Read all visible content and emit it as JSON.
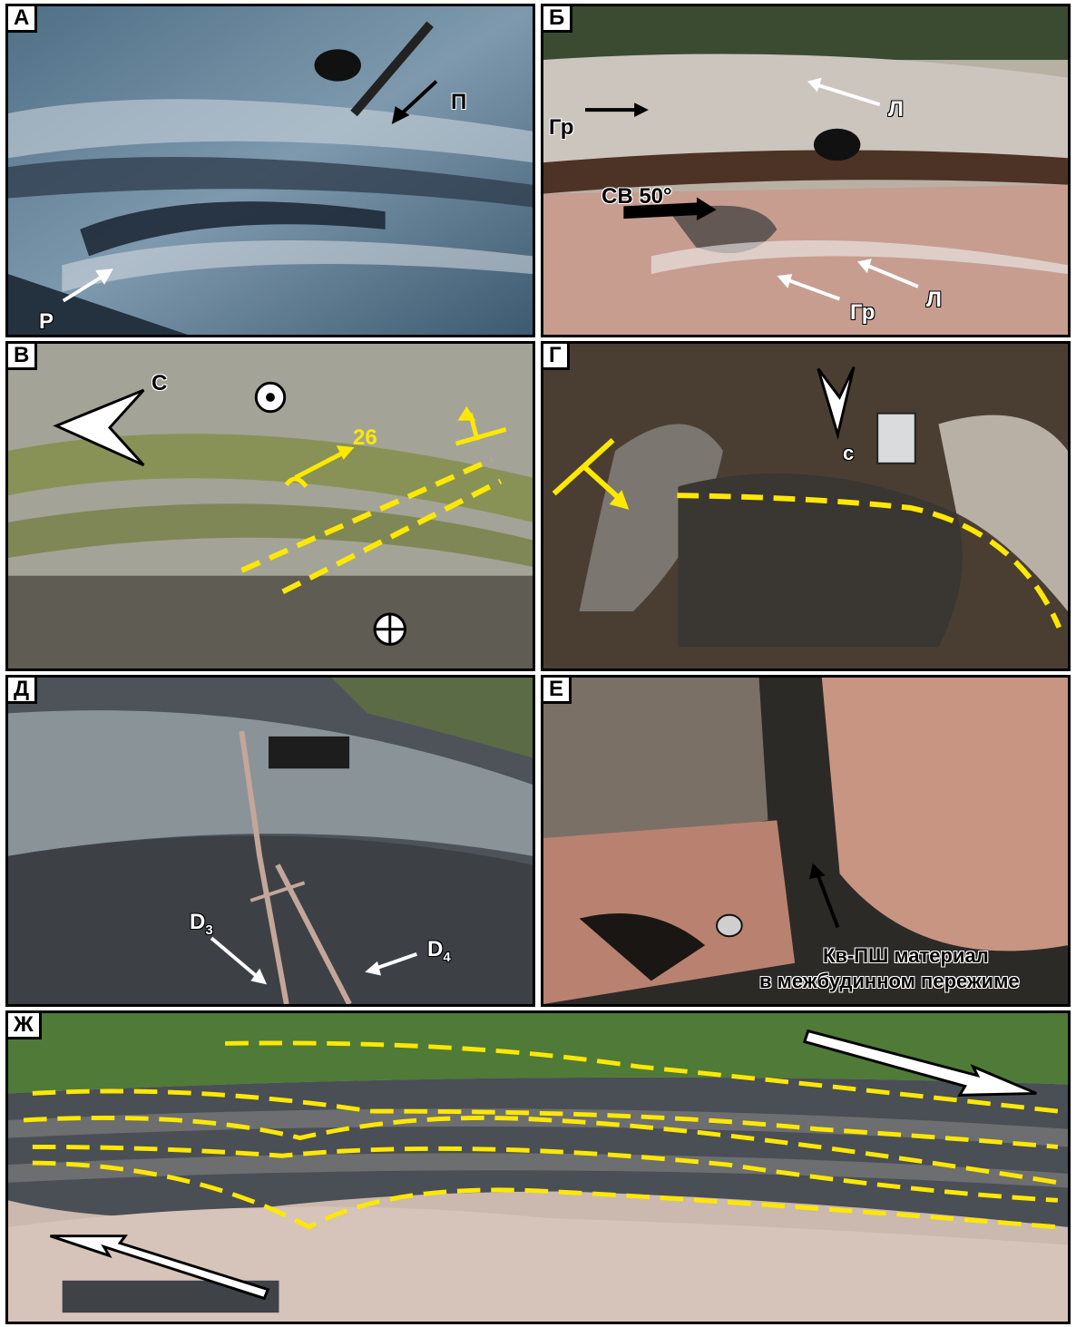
{
  "panels": {
    "A": {
      "tag": "А",
      "label_p": "П",
      "label_r": "Р"
    },
    "B": {
      "tag": "Б",
      "label_gr1": "Гр",
      "label_l1": "Л",
      "label_dir": "СВ 50°",
      "label_gr2": "Гр",
      "label_l2": "Л"
    },
    "V": {
      "tag": "В",
      "label_c": "С",
      "label_26": "26"
    },
    "G": {
      "tag": "Г",
      "label_c": "с"
    },
    "D": {
      "tag": "Д",
      "label_d3": "D",
      "label_d3_sub": "3",
      "label_d4": "D",
      "label_d4_sub": "4"
    },
    "E": {
      "tag": "Е",
      "caption_line1": "Кв-ПШ материал",
      "caption_line2": "в межбудинном пережиме"
    },
    "Zh": {
      "tag": "Ж"
    }
  },
  "colors": {
    "marker_yellow": "#ffe800",
    "border": "#000000"
  }
}
